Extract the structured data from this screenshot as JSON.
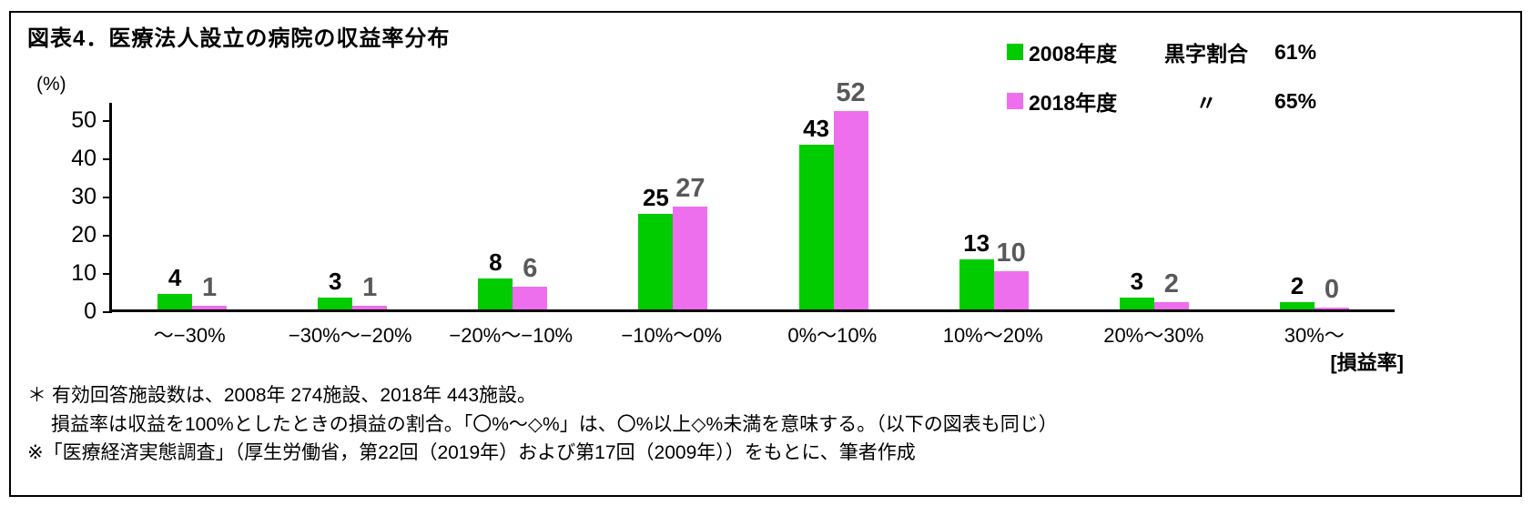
{
  "title": "図表4．医療法人設立の病院の収益率分布",
  "legend": {
    "items": [
      {
        "name": "2008年度",
        "note": "黒字割合",
        "value": "61%",
        "color": "#00cc00"
      },
      {
        "name": "2018年度",
        "note": "〃",
        "value": "65%",
        "color": "#ee6fee"
      }
    ]
  },
  "chart_data": {
    "type": "bar",
    "title": "図表4．医療法人設立の病院の収益率分布",
    "ylabel": "(%)",
    "xlabel": "[損益率]",
    "ylim": [
      0,
      50
    ],
    "yticks": [
      0,
      10,
      20,
      30,
      40,
      50
    ],
    "grid": false,
    "legend_position": "top-right",
    "categories": [
      "～−30%",
      "−30%～−20%",
      "−20%～−10%",
      "−10%～0%",
      "0%～10%",
      "10%～20%",
      "20%～30%",
      "30%～"
    ],
    "series": [
      {
        "name": "2008年度",
        "color": "#00cc00",
        "values": [
          4,
          3,
          8,
          25,
          43,
          13,
          3,
          2
        ]
      },
      {
        "name": "2018年度",
        "color": "#ee6fee",
        "values": [
          1,
          1,
          6,
          27,
          52,
          10,
          2,
          0
        ]
      }
    ]
  },
  "footnotes": [
    "＊ 有効回答施設数は、2008年 274施設、2018年 443施設。",
    "損益率は収益を100%としたときの損益の割合。「〇%～◇%」は、〇%以上◇%未満を意味する。（以下の図表も同じ）",
    "※「医療経済実態調査」（厚生労働省，第22回（2019年）および第17回（2009年））をもとに、筆者作成"
  ]
}
